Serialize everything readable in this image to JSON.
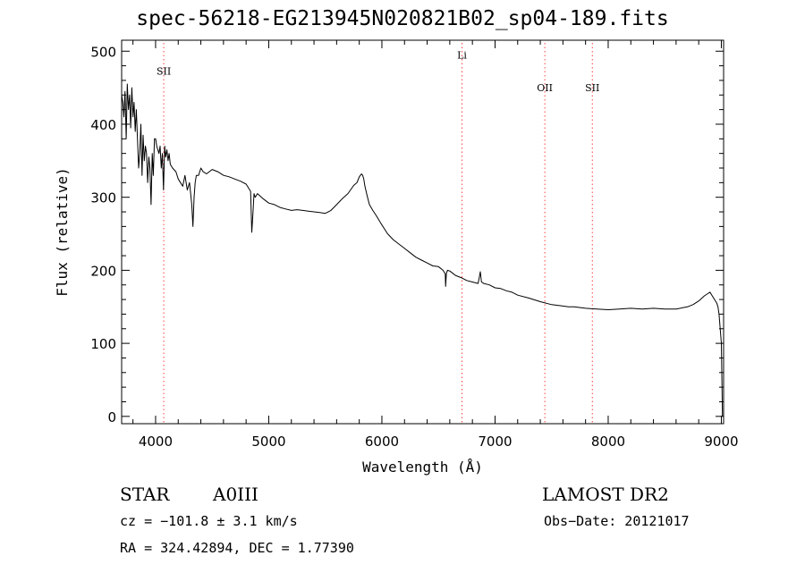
{
  "chart_data": {
    "type": "line",
    "title": "spec-56218-EG213945N020821B02_sp04-189.fits",
    "xlabel": "Wavelength (Å)",
    "ylabel": "Flux (relative)",
    "xlim": [
      3700,
      9020
    ],
    "ylim": [
      -10,
      515
    ],
    "xticks": [
      4000,
      5000,
      6000,
      7000,
      8000,
      9000
    ],
    "yticks": [
      0,
      100,
      200,
      300,
      400,
      500
    ],
    "grid": false,
    "series": [
      {
        "color": "#000000",
        "x": [
          3700,
          3710,
          3720,
          3730,
          3740,
          3750,
          3760,
          3770,
          3780,
          3790,
          3800,
          3810,
          3820,
          3830,
          3840,
          3850,
          3860,
          3870,
          3880,
          3890,
          3900,
          3910,
          3920,
          3930,
          3940,
          3950,
          3960,
          3970,
          3980,
          3990,
          4000,
          4010,
          4020,
          4030,
          4040,
          4050,
          4060,
          4070,
          4080,
          4090,
          4100,
          4110,
          4120,
          4130,
          4150,
          4180,
          4200,
          4220,
          4240,
          4260,
          4280,
          4300,
          4320,
          4330,
          4340,
          4350,
          4360,
          4380,
          4400,
          4420,
          4450,
          4500,
          4550,
          4600,
          4650,
          4700,
          4750,
          4800,
          4840,
          4850,
          4861,
          4870,
          4880,
          4900,
          4950,
          5000,
          5050,
          5100,
          5150,
          5200,
          5250,
          5300,
          5350,
          5400,
          5450,
          5500,
          5550,
          5600,
          5650,
          5700,
          5750,
          5780,
          5800,
          5810,
          5820,
          5830,
          5840,
          5850,
          5870,
          5890,
          5920,
          5950,
          6000,
          6050,
          6100,
          6150,
          6200,
          6250,
          6300,
          6350,
          6400,
          6450,
          6500,
          6540,
          6560,
          6563,
          6570,
          6580,
          6600,
          6650,
          6700,
          6750,
          6800,
          6850,
          6860,
          6870,
          6880,
          6900,
          6950,
          7000,
          7050,
          7100,
          7150,
          7200,
          7300,
          7400,
          7500,
          7600,
          7650,
          7700,
          7800,
          7900,
          8000,
          8100,
          8200,
          8300,
          8400,
          8500,
          8600,
          8700,
          8750,
          8800,
          8850,
          8880,
          8900,
          8920,
          8940,
          8960,
          8970,
          8980,
          8990,
          9000,
          9010
        ],
        "y": [
          440,
          430,
          410,
          445,
          380,
          455,
          420,
          440,
          395,
          450,
          410,
          430,
          390,
          420,
          380,
          340,
          360,
          400,
          330,
          385,
          350,
          370,
          360,
          320,
          355,
          340,
          290,
          360,
          330,
          380,
          380,
          370,
          365,
          360,
          370,
          340,
          360,
          310,
          370,
          355,
          365,
          350,
          360,
          345,
          340,
          335,
          325,
          320,
          315,
          330,
          310,
          320,
          290,
          260,
          300,
          320,
          330,
          330,
          340,
          335,
          332,
          338,
          335,
          330,
          328,
          325,
          322,
          318,
          308,
          252,
          280,
          305,
          300,
          305,
          298,
          292,
          290,
          286,
          284,
          282,
          283,
          282,
          281,
          280,
          279,
          278,
          282,
          290,
          298,
          305,
          316,
          320,
          328,
          330,
          332,
          330,
          325,
          315,
          302,
          290,
          282,
          275,
          262,
          250,
          242,
          236,
          230,
          224,
          218,
          214,
          210,
          206,
          205,
          200,
          195,
          178,
          196,
          200,
          199,
          193,
          190,
          186,
          184,
          182,
          190,
          198,
          184,
          182,
          180,
          176,
          175,
          172,
          170,
          166,
          162,
          157,
          153,
          151,
          150,
          150,
          148,
          147,
          146,
          147,
          148,
          147,
          148,
          147,
          147,
          150,
          153,
          158,
          165,
          168,
          170,
          165,
          160,
          155,
          150,
          140,
          120,
          100,
          0
        ]
      }
    ],
    "annotations": [
      {
        "label": "SII",
        "x": 4072,
        "y": 468
      },
      {
        "label": "Li",
        "x": 6708,
        "y": 490
      },
      {
        "label": "OII",
        "x": 7440,
        "y": 445
      },
      {
        "label": "SII",
        "x": 7860,
        "y": 445
      }
    ],
    "annotation_line_color": "#ff4040"
  },
  "info": {
    "object_class": "STAR",
    "subclass": "A0III",
    "survey": "LAMOST  DR2",
    "cz": "cz = −101.8 ± 3.1 km/s",
    "obs_date": "Obs−Date: 20121017",
    "radec": "RA = 324.42894, DEC =   1.77390"
  }
}
